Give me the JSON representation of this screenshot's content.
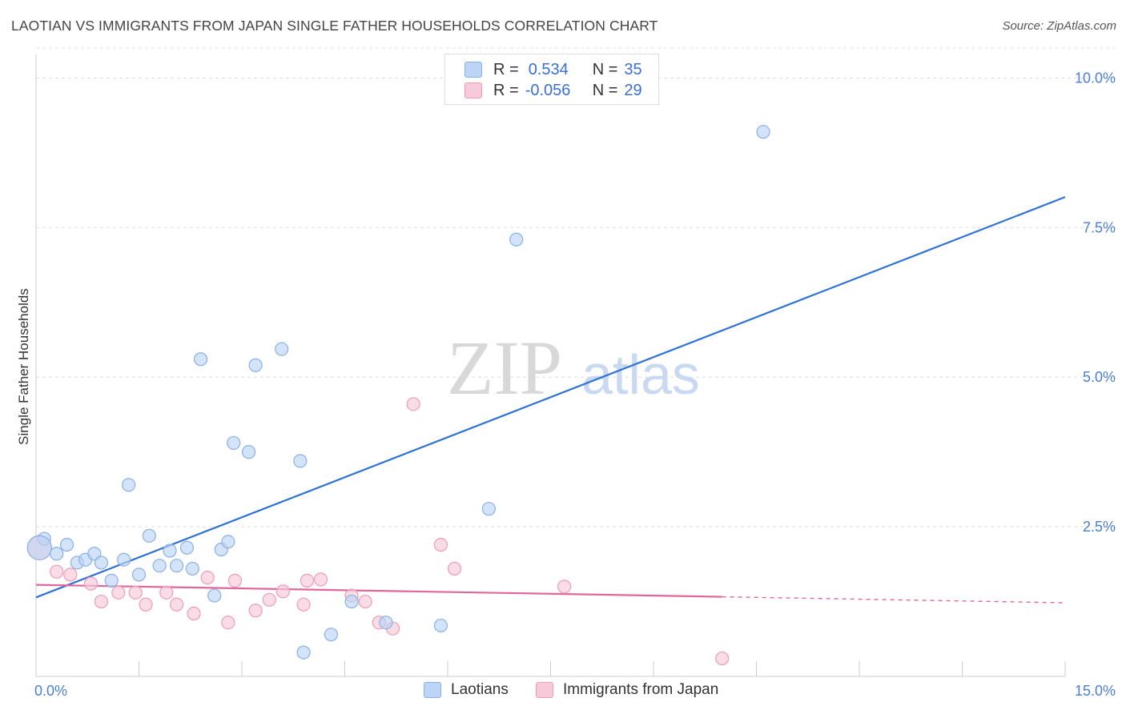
{
  "header": {
    "title": "LAOTIAN VS IMMIGRANTS FROM JAPAN SINGLE FATHER HOUSEHOLDS CORRELATION CHART",
    "source": "Source: ZipAtlas.com"
  },
  "legend": {
    "rows": [
      {
        "r_label": "R =",
        "r_value": "0.534",
        "n_label": "N =",
        "n_value": "35"
      },
      {
        "r_label": "R =",
        "r_value": "-0.056",
        "n_label": "N =",
        "n_value": "29"
      }
    ]
  },
  "bottom_legend": [
    "Laotians",
    "Immigrants from Japan"
  ],
  "colors": {
    "blue_fill": "#bcd4f5",
    "blue_stroke": "#8ab0e6",
    "blue_line": "#2f72d4",
    "pink_fill": "#f8c9d8",
    "pink_stroke": "#ee9bb6",
    "pink_line": "#e0679a",
    "tick_label": "#4a7fd6",
    "grid": "#dddddd"
  },
  "watermark": {
    "zip": "ZIP",
    "atlas": "atlas"
  },
  "chart_data": {
    "type": "scatter",
    "title": "LAOTIAN VS IMMIGRANTS FROM JAPAN SINGLE FATHER HOUSEHOLDS CORRELATION CHART",
    "xlabel": "",
    "ylabel": "Single Father Households",
    "xlim": [
      0,
      15
    ],
    "ylim": [
      0,
      10.5
    ],
    "x_tick_labels": [
      {
        "value": 0,
        "label": "0.0%"
      },
      {
        "value": 15,
        "label": "15.0%"
      }
    ],
    "y_tick_labels": [
      {
        "value": 2.5,
        "label": "2.5%"
      },
      {
        "value": 5.0,
        "label": "5.0%"
      },
      {
        "value": 7.5,
        "label": "7.5%"
      },
      {
        "value": 10.0,
        "label": "10.0%"
      }
    ],
    "series": [
      {
        "name": "Laotians",
        "color": "#bcd4f5",
        "points": [
          [
            0.12,
            2.3
          ],
          [
            0.3,
            2.05
          ],
          [
            0.45,
            2.2
          ],
          [
            0.6,
            1.9
          ],
          [
            0.72,
            1.95
          ],
          [
            0.85,
            2.05
          ],
          [
            0.95,
            1.9
          ],
          [
            1.1,
            1.6
          ],
          [
            1.28,
            1.95
          ],
          [
            1.35,
            3.2
          ],
          [
            1.5,
            1.7
          ],
          [
            1.65,
            2.35
          ],
          [
            1.8,
            1.85
          ],
          [
            1.95,
            2.1
          ],
          [
            2.05,
            1.85
          ],
          [
            2.2,
            2.15
          ],
          [
            2.28,
            1.8
          ],
          [
            2.4,
            5.3
          ],
          [
            2.6,
            1.35
          ],
          [
            2.7,
            2.12
          ],
          [
            2.8,
            2.25
          ],
          [
            2.88,
            3.9
          ],
          [
            3.1,
            3.75
          ],
          [
            3.2,
            5.2
          ],
          [
            3.58,
            5.47
          ],
          [
            3.85,
            3.6
          ],
          [
            3.9,
            0.4
          ],
          [
            4.3,
            0.7
          ],
          [
            4.6,
            1.25
          ],
          [
            5.1,
            0.9
          ],
          [
            5.9,
            0.85
          ],
          [
            6.6,
            2.8
          ],
          [
            7.0,
            7.3
          ],
          [
            10.6,
            9.1
          ],
          [
            0.05,
            2.15
          ]
        ]
      },
      {
        "name": "Immigrants from Japan",
        "color": "#f8c9d8",
        "points": [
          [
            0.05,
            2.15
          ],
          [
            0.3,
            1.75
          ],
          [
            0.5,
            1.7
          ],
          [
            0.8,
            1.55
          ],
          [
            0.95,
            1.25
          ],
          [
            1.2,
            1.4
          ],
          [
            1.45,
            1.4
          ],
          [
            1.6,
            1.2
          ],
          [
            1.9,
            1.4
          ],
          [
            2.05,
            1.2
          ],
          [
            2.3,
            1.05
          ],
          [
            2.5,
            1.65
          ],
          [
            2.8,
            0.9
          ],
          [
            2.9,
            1.6
          ],
          [
            3.2,
            1.1
          ],
          [
            3.4,
            1.28
          ],
          [
            3.6,
            1.42
          ],
          [
            3.9,
            1.2
          ],
          [
            3.95,
            1.6
          ],
          [
            4.15,
            1.62
          ],
          [
            4.6,
            1.35
          ],
          [
            4.8,
            1.25
          ],
          [
            5.0,
            0.9
          ],
          [
            5.2,
            0.8
          ],
          [
            5.5,
            4.55
          ],
          [
            5.9,
            2.2
          ],
          [
            6.1,
            1.8
          ],
          [
            7.7,
            1.5
          ],
          [
            10.0,
            0.3
          ]
        ]
      }
    ],
    "trend_lines": [
      {
        "series": "Laotians",
        "x": [
          0,
          15
        ],
        "y": [
          1.32,
          8.01
        ]
      },
      {
        "series": "Immigrants from Japan",
        "x": [
          0,
          10.0
        ],
        "y": [
          1.53,
          1.33
        ],
        "dashed_to": [
          15,
          1.23
        ]
      }
    ]
  }
}
